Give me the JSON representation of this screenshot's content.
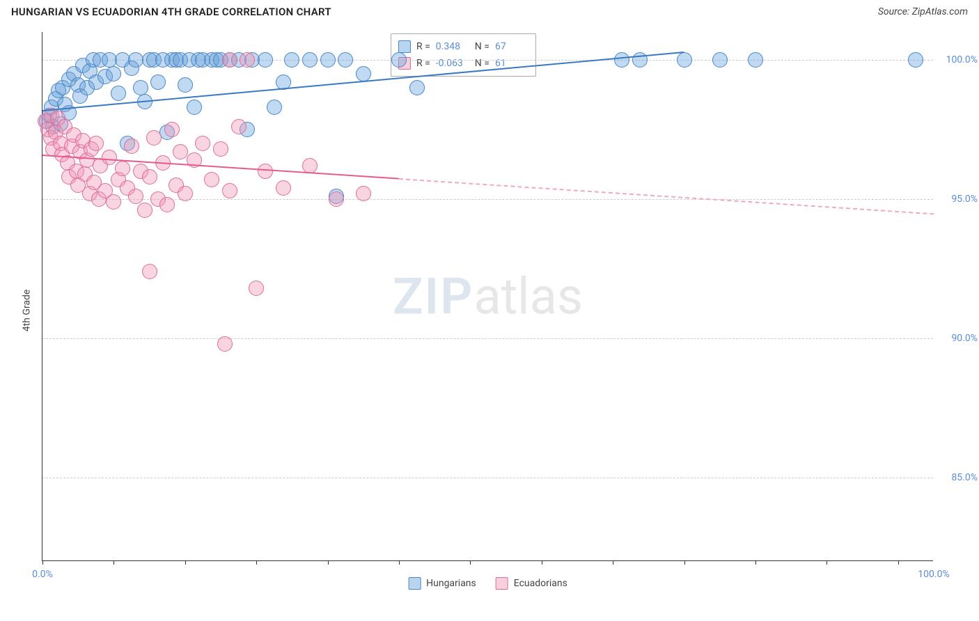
{
  "header": {
    "title": "HUNGARIAN VS ECUADORIAN 4TH GRADE CORRELATION CHART",
    "source": "Source: ZipAtlas.com"
  },
  "chart": {
    "type": "scatter",
    "ylabel": "4th Grade",
    "background_color": "#ffffff",
    "grid_color": "#cccccc",
    "xlim": [
      0,
      100
    ],
    "ylim": [
      82,
      101
    ],
    "x_axis": {
      "tick_positions": [
        0,
        8,
        16,
        24,
        32,
        40,
        48,
        56,
        64,
        72,
        80,
        88,
        96
      ],
      "label_left": "0.0%",
      "label_right": "100.0%",
      "label_fontsize": 14,
      "label_color": "#5a8dd6"
    },
    "y_axis": {
      "ticks": [
        {
          "value": 85.0,
          "label": "85.0%"
        },
        {
          "value": 90.0,
          "label": "90.0%"
        },
        {
          "value": 95.0,
          "label": "95.0%"
        },
        {
          "value": 100.0,
          "label": "100.0%"
        }
      ],
      "label_fontsize": 14,
      "label_color": "#5a8dd6"
    },
    "series": [
      {
        "name": "Hungarians",
        "marker_color_fill": "rgba(100,160,220,0.40)",
        "marker_color_stroke": "#4a86c5",
        "marker_radius": 11,
        "trend": {
          "x0": 0,
          "y0": 98.2,
          "x1": 72,
          "y1": 100.3,
          "solid_until_x": 72,
          "color": "#3b78c4",
          "line_width": 2.5
        },
        "stats": {
          "R": "0.348",
          "N": "67"
        },
        "points": [
          [
            0.5,
            97.8
          ],
          [
            0.8,
            98.0
          ],
          [
            1.0,
            98.3
          ],
          [
            1.2,
            97.6
          ],
          [
            1.5,
            98.6
          ],
          [
            1.8,
            98.9
          ],
          [
            2.0,
            97.7
          ],
          [
            2.3,
            99.0
          ],
          [
            2.5,
            98.4
          ],
          [
            3.0,
            99.3
          ],
          [
            3.0,
            98.1
          ],
          [
            3.5,
            99.5
          ],
          [
            4.0,
            99.1
          ],
          [
            4.2,
            98.7
          ],
          [
            4.5,
            99.8
          ],
          [
            5.0,
            99.0
          ],
          [
            5.3,
            99.6
          ],
          [
            5.7,
            100.0
          ],
          [
            6.0,
            99.2
          ],
          [
            6.5,
            100.0
          ],
          [
            7.0,
            99.4
          ],
          [
            7.5,
            100.0
          ],
          [
            8.0,
            99.5
          ],
          [
            8.5,
            98.8
          ],
          [
            9.0,
            100.0
          ],
          [
            9.5,
            97.0
          ],
          [
            10.0,
            99.7
          ],
          [
            10.5,
            100.0
          ],
          [
            11.0,
            99.0
          ],
          [
            11.5,
            98.5
          ],
          [
            12.0,
            100.0
          ],
          [
            12.5,
            100.0
          ],
          [
            13.0,
            99.2
          ],
          [
            13.5,
            100.0
          ],
          [
            14.0,
            97.4
          ],
          [
            14.5,
            100.0
          ],
          [
            15.0,
            100.0
          ],
          [
            15.5,
            100.0
          ],
          [
            16.0,
            99.1
          ],
          [
            16.5,
            100.0
          ],
          [
            17.0,
            98.3
          ],
          [
            17.5,
            100.0
          ],
          [
            18.0,
            100.0
          ],
          [
            19.0,
            100.0
          ],
          [
            19.5,
            100.0
          ],
          [
            20.0,
            100.0
          ],
          [
            21.0,
            100.0
          ],
          [
            22.0,
            100.0
          ],
          [
            23.0,
            97.5
          ],
          [
            23.5,
            100.0
          ],
          [
            25.0,
            100.0
          ],
          [
            26.0,
            98.3
          ],
          [
            27.0,
            99.2
          ],
          [
            28.0,
            100.0
          ],
          [
            30.0,
            100.0
          ],
          [
            32.0,
            100.0
          ],
          [
            33.0,
            95.1
          ],
          [
            34.0,
            100.0
          ],
          [
            36.0,
            99.5
          ],
          [
            40.0,
            100.0
          ],
          [
            42.0,
            99.0
          ],
          [
            65.0,
            100.0
          ],
          [
            67.0,
            100.0
          ],
          [
            72.0,
            100.0
          ],
          [
            76.0,
            100.0
          ],
          [
            80.0,
            100.0
          ],
          [
            98.0,
            100.0
          ]
        ]
      },
      {
        "name": "Ecuadorians",
        "marker_color_fill": "rgba(240,150,180,0.40)",
        "marker_color_stroke": "#e06a9a",
        "marker_radius": 11,
        "trend": {
          "x0": 0,
          "y0": 96.6,
          "x1": 100,
          "y1": 94.5,
          "solid_until_x": 40,
          "color": "#e75a8d",
          "dash_color": "#f0a9c0",
          "line_width": 2.5
        },
        "stats": {
          "R": "-0.063",
          "N": "61"
        },
        "points": [
          [
            0.3,
            97.8
          ],
          [
            0.6,
            97.5
          ],
          [
            0.9,
            97.2
          ],
          [
            1.0,
            98.0
          ],
          [
            1.2,
            96.8
          ],
          [
            1.5,
            97.4
          ],
          [
            1.7,
            97.9
          ],
          [
            2.0,
            97.0
          ],
          [
            2.2,
            96.6
          ],
          [
            2.5,
            97.6
          ],
          [
            2.8,
            96.3
          ],
          [
            3.0,
            95.8
          ],
          [
            3.3,
            96.9
          ],
          [
            3.5,
            97.3
          ],
          [
            3.8,
            96.0
          ],
          [
            4.0,
            95.5
          ],
          [
            4.2,
            96.7
          ],
          [
            4.5,
            97.1
          ],
          [
            4.8,
            95.9
          ],
          [
            5.0,
            96.4
          ],
          [
            5.3,
            95.2
          ],
          [
            5.5,
            96.8
          ],
          [
            5.8,
            95.6
          ],
          [
            6.0,
            97.0
          ],
          [
            6.3,
            95.0
          ],
          [
            6.5,
            96.2
          ],
          [
            7.0,
            95.3
          ],
          [
            7.5,
            96.5
          ],
          [
            8.0,
            94.9
          ],
          [
            8.5,
            95.7
          ],
          [
            9.0,
            96.1
          ],
          [
            9.5,
            95.4
          ],
          [
            10.0,
            96.9
          ],
          [
            10.5,
            95.1
          ],
          [
            11.0,
            96.0
          ],
          [
            11.5,
            94.6
          ],
          [
            12.0,
            95.8
          ],
          [
            12.5,
            97.2
          ],
          [
            13.0,
            95.0
          ],
          [
            13.5,
            96.3
          ],
          [
            14.0,
            94.8
          ],
          [
            14.5,
            97.5
          ],
          [
            15.0,
            95.5
          ],
          [
            15.5,
            96.7
          ],
          [
            12.0,
            92.4
          ],
          [
            16.0,
            95.2
          ],
          [
            17.0,
            96.4
          ],
          [
            18.0,
            97.0
          ],
          [
            19.0,
            95.7
          ],
          [
            20.0,
            96.8
          ],
          [
            21.0,
            95.3
          ],
          [
            22.0,
            97.6
          ],
          [
            23.0,
            100.0
          ],
          [
            24.0,
            91.8
          ],
          [
            25.0,
            96.0
          ],
          [
            21.0,
            100.0
          ],
          [
            27.0,
            95.4
          ],
          [
            30.0,
            96.2
          ],
          [
            33.0,
            95.0
          ],
          [
            36.0,
            95.2
          ],
          [
            20.5,
            89.8
          ]
        ]
      }
    ],
    "legend_bottom": [
      {
        "swatch": "blue",
        "label": "Hungarians"
      },
      {
        "swatch": "pink",
        "label": "Ecuadorians"
      }
    ],
    "watermark": {
      "zip": "ZIP",
      "atlas": "atlas",
      "fontsize": 72
    }
  }
}
